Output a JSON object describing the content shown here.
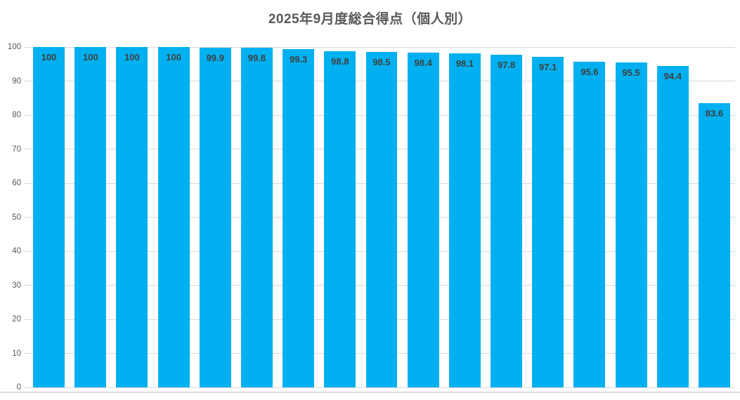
{
  "chart_data": {
    "type": "bar",
    "title": "2025年9月度総合得点（個人別）",
    "values": [
      100,
      100,
      100,
      100,
      99.9,
      99.8,
      99.3,
      98.8,
      98.5,
      98.4,
      98.1,
      97.8,
      97.1,
      95.6,
      95.5,
      94.4,
      83.6
    ],
    "data_labels": [
      "100",
      "100",
      "100",
      "100",
      "99.9",
      "99.8",
      "99.3",
      "98.8",
      "98.5",
      "98.4",
      "98.1",
      "97.8",
      "97.1",
      "95.6",
      "95.5",
      "94.4",
      "83.6"
    ],
    "xlabel": "",
    "ylabel": "",
    "ylim": [
      0,
      100
    ],
    "yticks": [
      0,
      10,
      20,
      30,
      40,
      50,
      60,
      70,
      80,
      90,
      100
    ],
    "grid": "horizontal-major",
    "legend_position": "none",
    "category_axis_labels_visible": false,
    "data_label_position": "inside-end",
    "colors": {
      "bar_fill": "#00B0F0",
      "gridline": "#D9D9D9",
      "chart_bottom_border": "#D9D9D9",
      "title_text": "#595959",
      "axis_tick_text": "#595959",
      "data_label_text": "#404040"
    }
  }
}
